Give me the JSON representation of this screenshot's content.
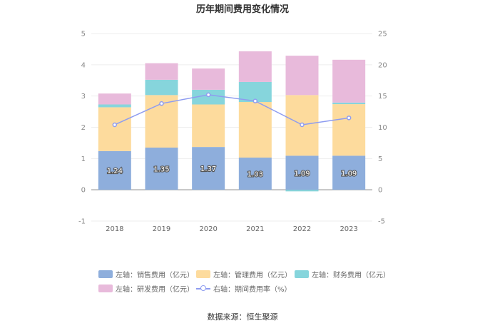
{
  "chart_data": {
    "type": "bar",
    "stacked": true,
    "title": "历年期间费用变化情况",
    "categories": [
      "2018",
      "2019",
      "2020",
      "2021",
      "2022",
      "2023"
    ],
    "left_axis": {
      "min": -1,
      "max": 5,
      "ticks": [
        "-1",
        "0",
        "1",
        "2",
        "3",
        "4",
        "5"
      ]
    },
    "right_axis": {
      "min": -5,
      "max": 25,
      "ticks": [
        "-5",
        "0",
        "5",
        "10",
        "15",
        "20",
        "25"
      ]
    },
    "series": [
      {
        "name": "左轴：销售费用（亿元）",
        "axis": "left",
        "color": "#8eaedc",
        "values": [
          1.24,
          1.35,
          1.37,
          1.03,
          1.09,
          1.09
        ],
        "labels": [
          "1.24",
          "1.35",
          "1.37",
          "1.03",
          "1.09",
          "1.09"
        ]
      },
      {
        "name": "左轴：管理费用（亿元）",
        "axis": "left",
        "color": "#fddb9d",
        "values": [
          1.4,
          1.68,
          1.36,
          1.78,
          1.94,
          1.65
        ]
      },
      {
        "name": "左轴：财务费用（亿元）",
        "axis": "left",
        "color": "#86d5dc",
        "values": [
          0.09,
          0.49,
          0.47,
          0.64,
          -0.05,
          0.05
        ]
      },
      {
        "name": "左轴：研发费用（亿元）",
        "axis": "left",
        "color": "#e8badb",
        "values": [
          0.35,
          0.53,
          0.68,
          0.98,
          1.26,
          1.37
        ]
      },
      {
        "name": "右轴：期间费用率（%）",
        "axis": "right",
        "type": "line",
        "color": "#8e9cf0",
        "values": [
          10.4,
          13.8,
          15.2,
          14.2,
          10.4,
          11.5
        ]
      }
    ]
  },
  "source": "数据来源：恒生聚源"
}
